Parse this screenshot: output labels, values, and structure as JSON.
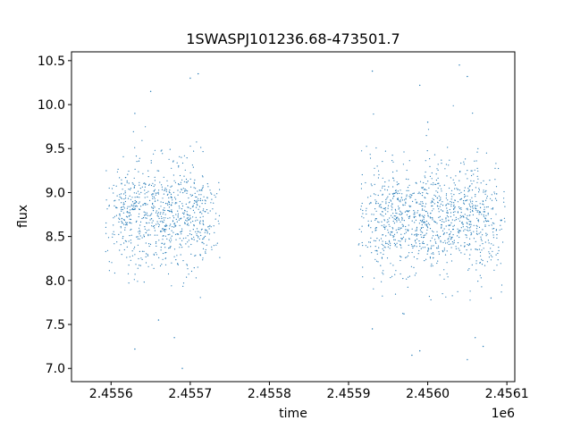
{
  "chart_data": {
    "type": "scatter",
    "title": "1SWASPJ101236.68-473501.7",
    "xlabel": "time",
    "ylabel": "flux",
    "x_offset_label": "1e6",
    "xlim": [
      2.45555,
      2.45611
    ],
    "ylim": [
      6.85,
      10.6
    ],
    "grid": false,
    "legend": "none",
    "marker_color": "#1f77b4",
    "x_ticks": [
      {
        "value": 2.4556,
        "label": "2.4556"
      },
      {
        "value": 2.4557,
        "label": "2.4557"
      },
      {
        "value": 2.4558,
        "label": "2.4558"
      },
      {
        "value": 2.4559,
        "label": "2.4559"
      },
      {
        "value": 2.456,
        "label": "2.4560"
      },
      {
        "value": 2.4561,
        "label": "2.4561"
      }
    ],
    "y_ticks": [
      {
        "value": 7.0,
        "label": "7.0"
      },
      {
        "value": 7.5,
        "label": "7.5"
      },
      {
        "value": 8.0,
        "label": "8.0"
      },
      {
        "value": 8.5,
        "label": "8.5"
      },
      {
        "value": 9.0,
        "label": "9.0"
      },
      {
        "value": 9.5,
        "label": "9.5"
      },
      {
        "value": 10.0,
        "label": "10.0"
      },
      {
        "value": 10.5,
        "label": "10.5"
      }
    ],
    "observing_seasons": [
      {
        "x_start": 2.45561,
        "x_end": 2.45572,
        "median_flux": 8.75,
        "typical_flux_range": [
          8.05,
          9.2
        ],
        "nights": [
          2.45561,
          2.45562,
          2.45563,
          2.45564,
          2.45565,
          2.45566,
          2.45567,
          2.45568,
          2.45569,
          2.4557,
          2.45571,
          2.45572
        ]
      },
      {
        "x_start": 2.45593,
        "x_end": 2.45608,
        "median_flux": 8.72,
        "typical_flux_range": [
          7.95,
          9.25
        ],
        "nights": [
          2.45593,
          2.45594,
          2.45595,
          2.45596,
          2.45597,
          2.45598,
          2.45599,
          2.456,
          2.45601,
          2.45602,
          2.45603,
          2.45604,
          2.45605,
          2.45606,
          2.45607,
          2.45608
        ]
      }
    ],
    "outliers": [
      {
        "x": 2.45563,
        "y": 9.9
      },
      {
        "x": 2.45563,
        "y": 7.22
      },
      {
        "x": 2.45565,
        "y": 10.15
      },
      {
        "x": 2.45566,
        "y": 7.55
      },
      {
        "x": 2.45568,
        "y": 7.35
      },
      {
        "x": 2.4557,
        "y": 10.3
      },
      {
        "x": 2.45569,
        "y": 7.0
      },
      {
        "x": 2.45571,
        "y": 10.35
      },
      {
        "x": 2.45593,
        "y": 10.38
      },
      {
        "x": 2.45593,
        "y": 7.45
      },
      {
        "x": 2.45597,
        "y": 7.62
      },
      {
        "x": 2.45599,
        "y": 10.22
      },
      {
        "x": 2.456,
        "y": 9.8
      },
      {
        "x": 2.45598,
        "y": 7.15
      },
      {
        "x": 2.45599,
        "y": 7.2
      },
      {
        "x": 2.45604,
        "y": 10.45
      },
      {
        "x": 2.45605,
        "y": 10.32
      },
      {
        "x": 2.45605,
        "y": 7.1
      },
      {
        "x": 2.45606,
        "y": 7.35
      },
      {
        "x": 2.45607,
        "y": 7.25
      },
      {
        "x": 2.45608,
        "y": 7.8
      }
    ]
  }
}
